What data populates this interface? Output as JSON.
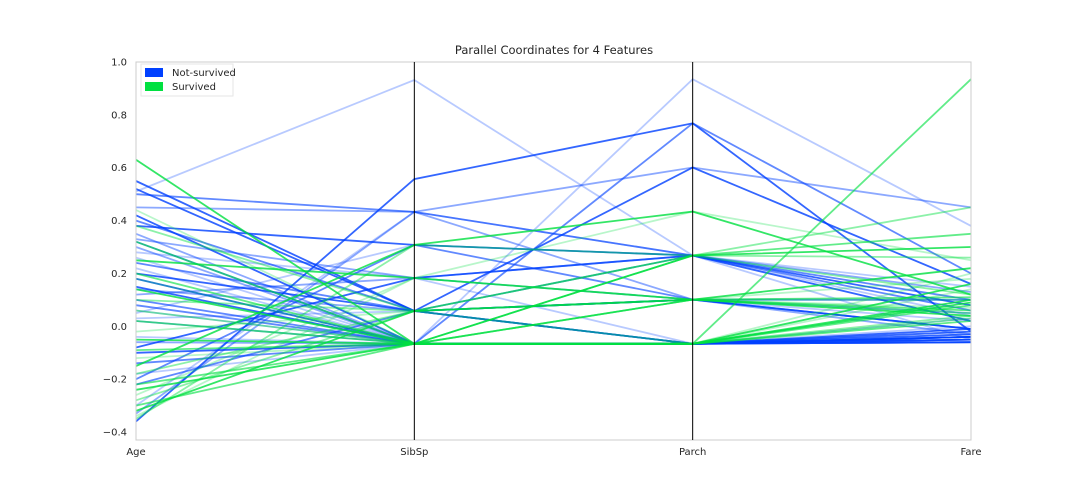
{
  "chart_data": {
    "type": "parallel-coordinates",
    "title": "Parallel Coordinates for 4 Features",
    "features": [
      "Age",
      "SibSp",
      "Parch",
      "Fare"
    ],
    "ylim": [
      -0.43,
      1.0
    ],
    "yticks": [
      -0.4,
      -0.2,
      0.0,
      0.2,
      0.4,
      0.6,
      0.8,
      1.0
    ],
    "ytick_labels": [
      "−0.4",
      "−0.2",
      "0.0",
      "0.2",
      "0.4",
      "0.6",
      "0.8",
      "1.0"
    ],
    "grid": false,
    "legend_position": "upper-left",
    "classes": [
      {
        "name": "Not-survived",
        "color": "#0040ff"
      },
      {
        "name": "Survived",
        "color": "#00e040"
      }
    ],
    "sibsp_levels": [
      -0.066,
      0.058,
      0.183,
      0.308,
      0.433,
      0.557,
      0.932
    ],
    "parch_levels": [
      -0.066,
      0.101,
      0.268,
      0.434,
      0.601,
      0.768,
      0.935
    ],
    "series": [
      {
        "class": "Not-survived",
        "rows": [
          [
            0.51,
            0.932,
            0.268,
            0.04
          ],
          [
            -0.36,
            0.557,
            0.768,
            -0.02
          ],
          [
            0.5,
            0.433,
            0.268,
            0.1
          ],
          [
            0.45,
            0.433,
            0.101,
            0.05
          ],
          [
            -0.3,
            0.433,
            0.268,
            -0.05
          ],
          [
            0.38,
            0.308,
            0.268,
            0.02
          ],
          [
            -0.2,
            0.308,
            0.101,
            -0.01
          ],
          [
            0.12,
            0.183,
            0.101,
            -0.03
          ],
          [
            0.28,
            0.183,
            -0.066,
            0.0
          ],
          [
            0.52,
            0.058,
            -0.066,
            -0.04
          ],
          [
            0.4,
            0.058,
            0.268,
            0.06
          ],
          [
            -0.33,
            0.433,
            0.601,
            0.45
          ],
          [
            0.06,
            -0.066,
            0.935,
            0.38
          ],
          [
            0.2,
            0.058,
            0.601,
            0.16
          ],
          [
            0.32,
            -0.066,
            0.768,
            0.2
          ],
          [
            0.3,
            -0.066,
            -0.066,
            -0.05
          ],
          [
            0.22,
            -0.066,
            -0.066,
            -0.03
          ],
          [
            0.15,
            -0.066,
            -0.066,
            -0.06
          ],
          [
            0.08,
            -0.066,
            -0.066,
            -0.04
          ],
          [
            0.02,
            -0.066,
            -0.066,
            -0.02
          ],
          [
            -0.04,
            -0.066,
            -0.066,
            -0.05
          ],
          [
            -0.1,
            -0.066,
            -0.066,
            -0.01
          ],
          [
            -0.14,
            -0.066,
            -0.066,
            -0.06
          ],
          [
            0.35,
            -0.066,
            -0.066,
            -0.05
          ],
          [
            0.26,
            -0.066,
            -0.066,
            0.03
          ],
          [
            0.18,
            -0.066,
            -0.066,
            -0.04
          ],
          [
            0.1,
            -0.066,
            -0.066,
            -0.02
          ],
          [
            -0.06,
            -0.066,
            -0.066,
            -0.06
          ],
          [
            -0.18,
            -0.066,
            -0.066,
            -0.03
          ],
          [
            0.42,
            -0.066,
            -0.066,
            -0.05
          ],
          [
            0.24,
            0.058,
            0.101,
            0.1
          ],
          [
            0.14,
            0.058,
            -0.066,
            -0.04
          ],
          [
            0.03,
            0.058,
            0.101,
            0.02
          ],
          [
            -0.08,
            0.183,
            0.268,
            0.08
          ],
          [
            -0.22,
            0.058,
            -0.066,
            -0.03
          ],
          [
            0.33,
            0.183,
            0.268,
            0.13
          ],
          [
            0.05,
            0.308,
            0.268,
            0.15
          ],
          [
            0.55,
            0.058,
            0.101,
            -0.01
          ]
        ]
      },
      {
        "class": "Survived",
        "rows": [
          [
            0.63,
            -0.066,
            -0.066,
            0.1
          ],
          [
            0.2,
            -0.066,
            -0.066,
            0.935
          ],
          [
            -0.35,
            0.308,
            0.268,
            0.45
          ],
          [
            -0.34,
            0.183,
            0.434,
            0.25
          ],
          [
            -0.32,
            0.058,
            0.101,
            0.22
          ],
          [
            -0.3,
            -0.066,
            0.268,
            0.35
          ],
          [
            -0.28,
            0.058,
            0.268,
            0.12
          ],
          [
            -0.26,
            0.183,
            0.101,
            0.07
          ],
          [
            -0.24,
            -0.066,
            -0.066,
            0.16
          ],
          [
            -0.22,
            -0.066,
            0.101,
            0.06
          ],
          [
            -0.18,
            0.058,
            -0.066,
            0.03
          ],
          [
            -0.12,
            -0.066,
            -0.066,
            0.2
          ],
          [
            -0.05,
            -0.066,
            -0.066,
            0.09
          ],
          [
            0.02,
            -0.066,
            0.101,
            0.11
          ],
          [
            0.1,
            0.058,
            0.101,
            0.05
          ],
          [
            0.18,
            -0.066,
            -0.066,
            0.14
          ],
          [
            0.25,
            0.183,
            0.101,
            0.04
          ],
          [
            0.32,
            -0.066,
            -0.066,
            0.08
          ],
          [
            0.38,
            0.058,
            0.268,
            0.26
          ],
          [
            0.44,
            -0.066,
            0.101,
            0.18
          ],
          [
            -0.15,
            0.308,
            0.434,
            0.12
          ],
          [
            -0.09,
            -0.066,
            -0.066,
            0.02
          ],
          [
            0.06,
            -0.066,
            -0.066,
            0.04
          ],
          [
            -0.02,
            0.058,
            0.101,
            0.1
          ],
          [
            0.14,
            -0.066,
            0.268,
            0.3
          ]
        ]
      }
    ]
  }
}
